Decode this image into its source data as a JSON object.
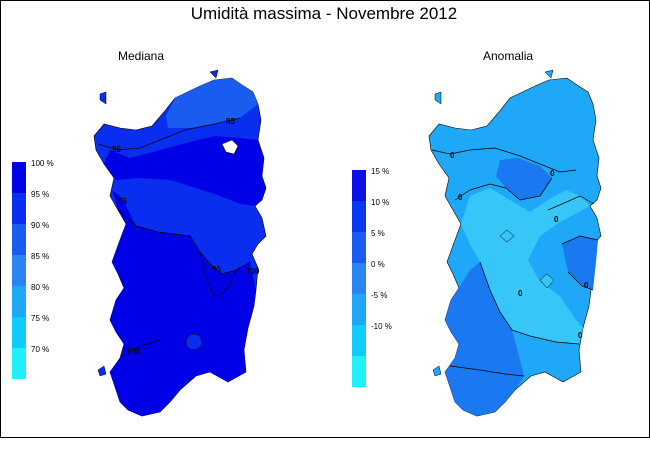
{
  "title": "Umidità massima - Novembre 2012",
  "maps": [
    {
      "subtitle": "Mediana",
      "legend": [
        {
          "label": "100 %",
          "color": "#0000e6"
        },
        {
          "label": "95 %",
          "color": "#0a2ef0"
        },
        {
          "label": "90 %",
          "color": "#1a5cf0"
        },
        {
          "label": "85 %",
          "color": "#2a84f2"
        },
        {
          "label": "80 %",
          "color": "#20a8f8"
        },
        {
          "label": "75 %",
          "color": "#10ccfa"
        },
        {
          "label": "70 %",
          "color": "#20f0fa"
        }
      ],
      "contour_labels": [
        "95",
        "95",
        "95",
        "95",
        "100",
        "100"
      ]
    },
    {
      "subtitle": "Anomalia",
      "legend": [
        {
          "label": "15 %",
          "color": "#0a10e6"
        },
        {
          "label": "10 %",
          "color": "#0a38f0"
        },
        {
          "label": "5 %",
          "color": "#1a5cf0"
        },
        {
          "label": "0 %",
          "color": "#2a84f2"
        },
        {
          "label": "-5 %",
          "color": "#20a8f8"
        },
        {
          "label": "-10 %",
          "color": "#10ccfa"
        },
        {
          "label": "",
          "color": "#20f0fa"
        }
      ],
      "contour_labels": [
        "0",
        "0",
        "0",
        "0",
        "0",
        "0",
        "0"
      ]
    }
  ]
}
